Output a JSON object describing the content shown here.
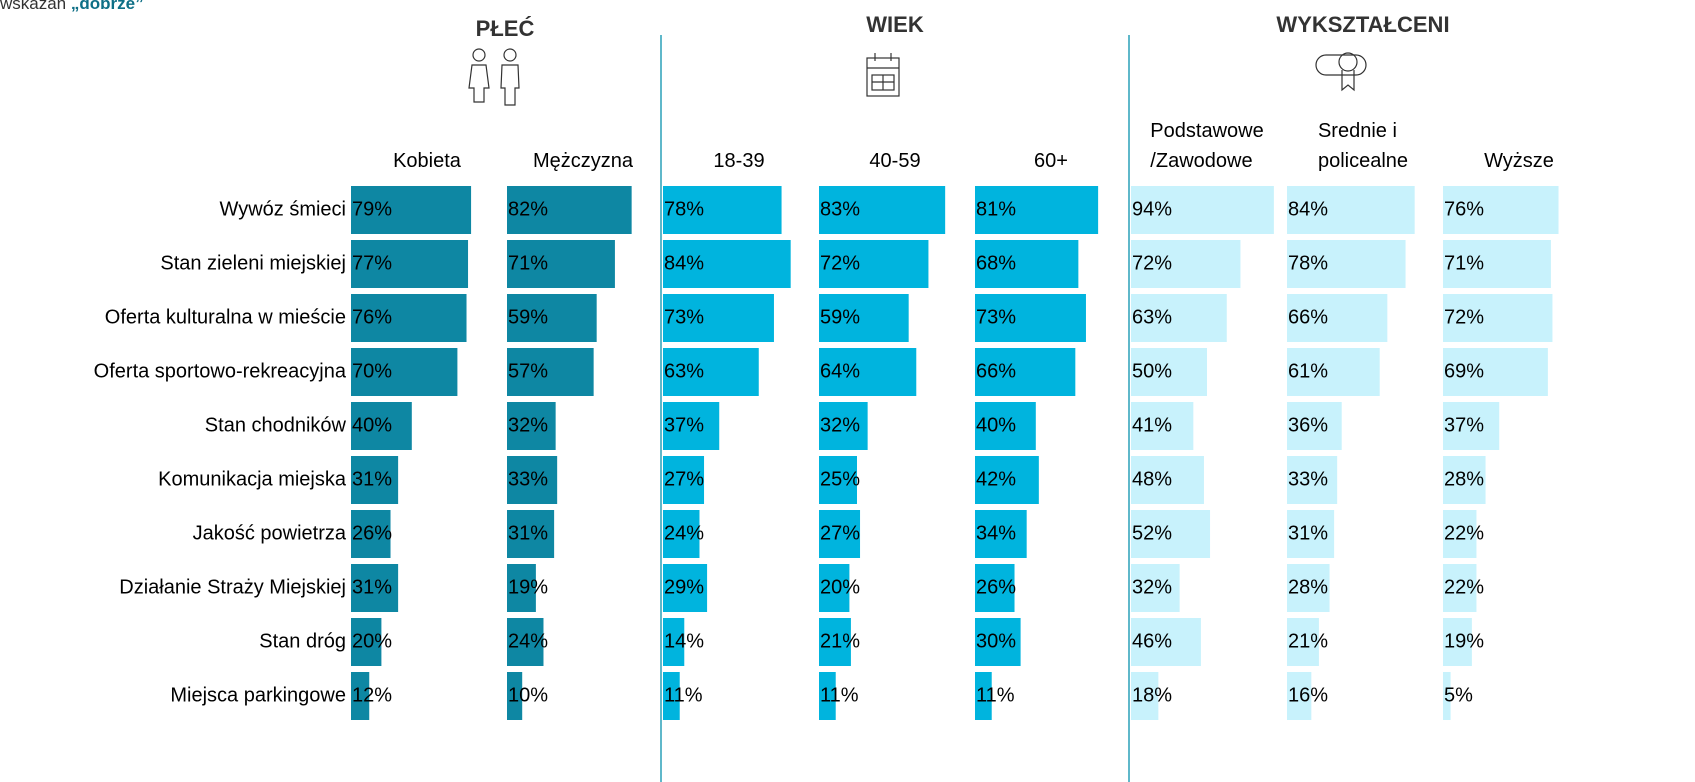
{
  "chart_data": {
    "type": "bar",
    "subtitle": {
      "text": "wskazań",
      "emphasis": "„dobrze”"
    },
    "categories": [
      "Wywóz śmieci",
      "Stan zieleni miejskiej",
      "Oferta kulturalna w mieście",
      "Oferta sportowo-rekreacyjna",
      "Stan chodników",
      "Komunikacja miejska",
      "Jakość powietrza",
      "Działanie Straży Miejskiej",
      "Stan dróg",
      "Miejsca parkingowe"
    ],
    "groups": [
      {
        "title": "PŁEĆ",
        "color": "#0e87a3",
        "series": [
          {
            "name": "Kobieta",
            "values": [
              79,
              77,
              76,
              70,
              40,
              31,
              26,
              31,
              20,
              12
            ],
            "value_labels": [
              "79%",
              "77%",
              "76%",
              "70%",
              "40%",
              "31%",
              "26%",
              "31%",
              "20%",
              "12%"
            ]
          },
          {
            "name": "Mężczyzna",
            "values": [
              82,
              71,
              59,
              57,
              32,
              33,
              31,
              19,
              24,
              10
            ],
            "value_labels": [
              "82%",
              "71%",
              "59%",
              "57%",
              "32%",
              "33%",
              "31%",
              "19%",
              "24%",
              "10%"
            ]
          }
        ]
      },
      {
        "title": "WIEK",
        "color": "#00b4de",
        "series": [
          {
            "name": "18-39",
            "values": [
              78,
              84,
              73,
              63,
              37,
              27,
              24,
              29,
              14,
              11
            ],
            "value_labels": [
              "78%",
              "84%",
              "73%",
              "63%",
              "37%",
              "27%",
              "24%",
              "29%",
              "14%",
              "11%"
            ]
          },
          {
            "name": "40-59",
            "values": [
              83,
              72,
              59,
              64,
              32,
              25,
              27,
              20,
              21,
              11
            ],
            "value_labels": [
              "83%",
              "72%",
              "59%",
              "64%",
              "32%",
              "25%",
              "27%",
              "20%",
              "21%",
              "11%"
            ]
          },
          {
            "name": "60+",
            "values": [
              81,
              68,
              73,
              66,
              40,
              42,
              34,
              26,
              30,
              11
            ],
            "value_labels": [
              "81%",
              "68%",
              "73%",
              "66%",
              "40%",
              "42%",
              "34%",
              "26%",
              "30%",
              "11%"
            ]
          }
        ]
      },
      {
        "title": "WYKSZTAŁCENI",
        "color": "#c8f2fc",
        "series": [
          {
            "name": "Podstawowe\n/Zawodowe",
            "values": [
              94,
              72,
              63,
              50,
              41,
              48,
              52,
              32,
              46,
              18
            ],
            "value_labels": [
              "94%",
              "72%",
              "63%",
              "50%",
              "41%",
              "48%",
              "52%",
              "32%",
              "46%",
              "18%"
            ]
          },
          {
            "name": "Srednie i\npolicealne",
            "values": [
              84,
              78,
              66,
              61,
              36,
              33,
              31,
              28,
              21,
              16
            ],
            "value_labels": [
              "84%",
              "78%",
              "66%",
              "61%",
              "36%",
              "33%",
              "31%",
              "28%",
              "21%",
              "16%"
            ]
          },
          {
            "name": "Wyższe",
            "values": [
              76,
              71,
              72,
              69,
              37,
              28,
              22,
              22,
              19,
              5
            ],
            "value_labels": [
              "76%",
              "71%",
              "72%",
              "69%",
              "37%",
              "28%",
              "22%",
              "22%",
              "19%",
              "5%"
            ]
          }
        ]
      }
    ]
  }
}
